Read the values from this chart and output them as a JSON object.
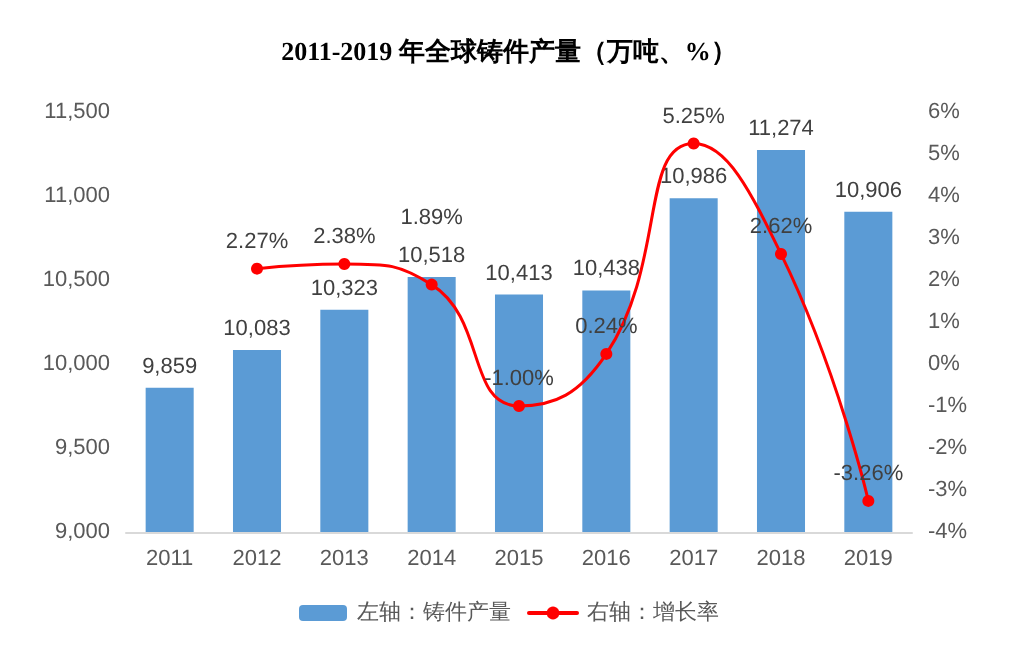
{
  "chart_data": {
    "type": "bar",
    "title": "2011-2019 年全球铸件产量（万吨、%）",
    "categories": [
      "2011",
      "2012",
      "2013",
      "2014",
      "2015",
      "2016",
      "2017",
      "2018",
      "2019"
    ],
    "series": [
      {
        "name": "左轴：铸件产量",
        "color": "#5b9bd5",
        "values": [
          9859,
          10083,
          10323,
          10518,
          10413,
          10438,
          10986,
          11274,
          10906
        ],
        "value_labels": [
          "9,859",
          "10,083",
          "10,323",
          "10,518",
          "10,413",
          "10,438",
          "10,986",
          "11,274",
          "10,906"
        ]
      },
      {
        "name": "右轴：增长率",
        "type": "line",
        "axis": "y2",
        "color": "#ff0000",
        "marker": "circle",
        "values": [
          null,
          2.27,
          2.38,
          1.89,
          -1.0,
          0.24,
          5.25,
          2.62,
          -3.26
        ],
        "value_labels": [
          null,
          "2.27%",
          "2.38%",
          "1.89%",
          "-1.00%",
          "0.24%",
          "5.25%",
          "2.62%",
          "-3.26%"
        ]
      }
    ],
    "ylim": [
      9000,
      11500
    ],
    "yticks": [
      {
        "value": 9000,
        "label": "9,000"
      },
      {
        "value": 9500,
        "label": "9,500"
      },
      {
        "value": 10000,
        "label": "10,000"
      },
      {
        "value": 10500,
        "label": "10,500"
      },
      {
        "value": 11000,
        "label": "11,000"
      },
      {
        "value": 11500,
        "label": "11,500"
      }
    ],
    "y2lim": [
      -4,
      6
    ],
    "y2ticks": [
      {
        "value": -4,
        "label": "-4%"
      },
      {
        "value": -3,
        "label": "-3%"
      },
      {
        "value": -2,
        "label": "-2%"
      },
      {
        "value": -1,
        "label": "-1%"
      },
      {
        "value": 0,
        "label": "0%"
      },
      {
        "value": 1,
        "label": "1%"
      },
      {
        "value": 2,
        "label": "2%"
      },
      {
        "value": 3,
        "label": "3%"
      },
      {
        "value": 4,
        "label": "4%"
      },
      {
        "value": 5,
        "label": "5%"
      },
      {
        "value": 6,
        "label": "6%"
      }
    ],
    "grid": false,
    "legend": "bottom"
  }
}
